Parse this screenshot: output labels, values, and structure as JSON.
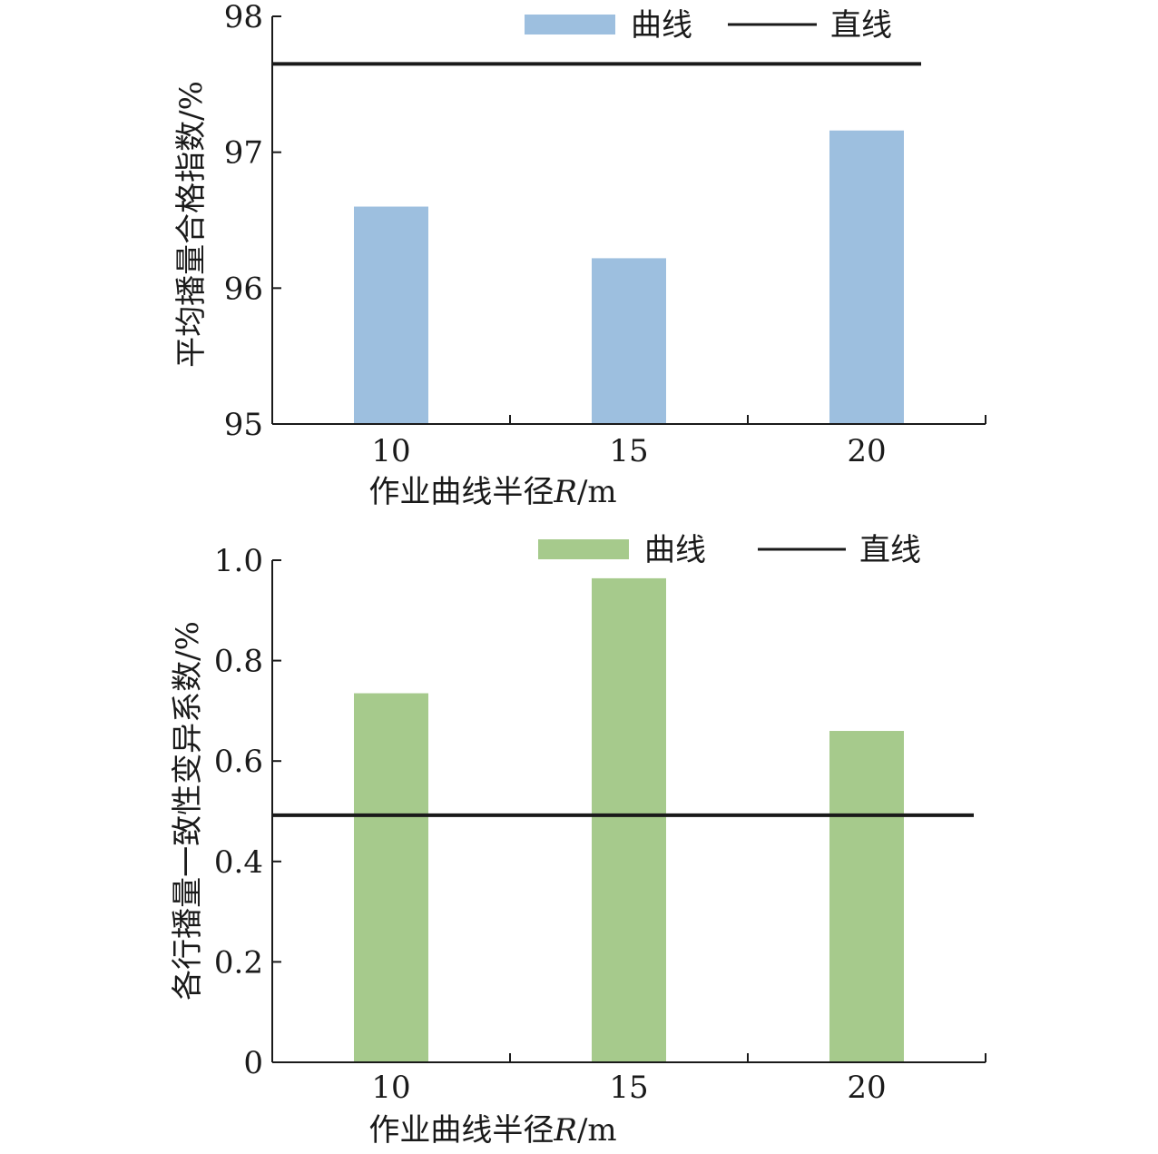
{
  "chart_data": [
    {
      "type": "bar",
      "categories": [
        "10",
        "15",
        "20"
      ],
      "series": [
        {
          "name": "曲线",
          "values": [
            96.6,
            96.22,
            97.16
          ],
          "color": "#9dbfdf"
        }
      ],
      "reference_lines": [
        {
          "name": "直线",
          "value": 97.65,
          "color": "#1a1a1a"
        }
      ],
      "xlabel": "作业曲线半径R/m",
      "ylabel": "平均播量合格指数/%",
      "ylim": [
        95,
        98
      ],
      "yticks": [
        "95",
        "96",
        "97",
        "98"
      ],
      "legend_position": "top",
      "grid": false
    },
    {
      "type": "bar",
      "categories": [
        "10",
        "15",
        "20"
      ],
      "series": [
        {
          "name": "曲线",
          "values": [
            0.735,
            0.964,
            0.66
          ],
          "color": "#a6ca8c"
        }
      ],
      "reference_lines": [
        {
          "name": "直线",
          "value": 0.492,
          "color": "#1a1a1a"
        }
      ],
      "xlabel": "作业曲线半径R/m",
      "ylabel": "各行播量一致性变异系数/%",
      "ylim": [
        0,
        1.0
      ],
      "yticks": [
        "0",
        "0.2",
        "0.4",
        "0.6",
        "0.8",
        "1.0"
      ],
      "legend_position": "top",
      "grid": false
    }
  ]
}
